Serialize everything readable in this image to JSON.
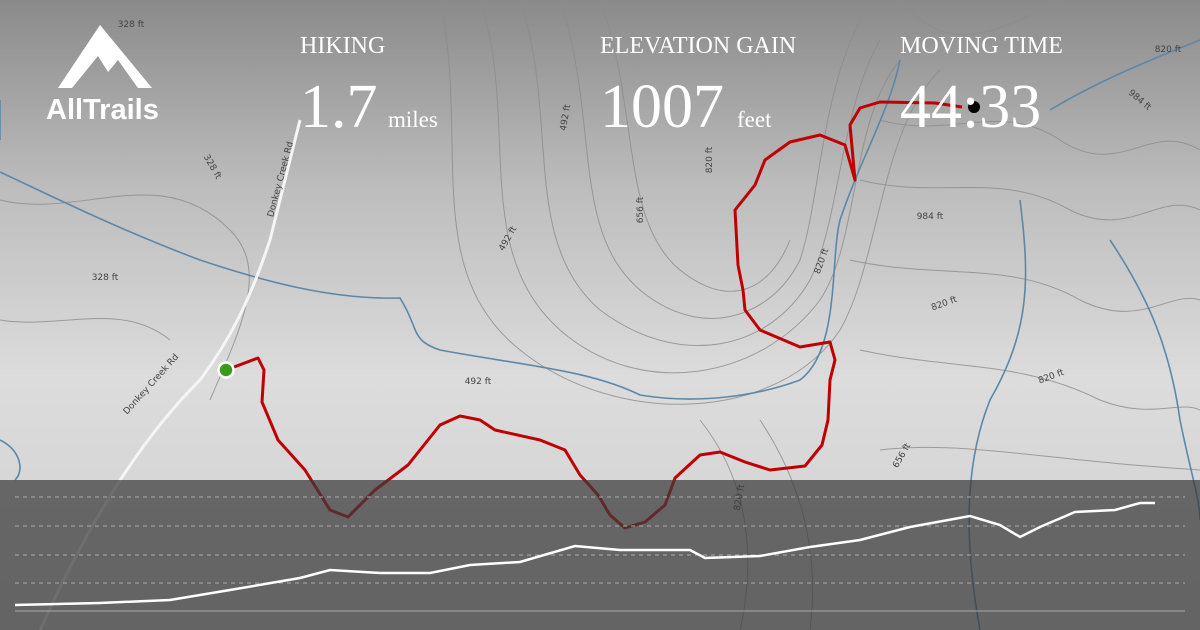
{
  "logo": {
    "name": "AllTrails"
  },
  "stats": [
    {
      "label": "HIKING",
      "value": "1.7",
      "unit": "miles"
    },
    {
      "label": "ELEVATION GAIN",
      "value": "1007",
      "unit": "feet"
    },
    {
      "label": "MOVING TIME",
      "value": "44:33"
    }
  ],
  "map_labels": [
    "328 ft",
    "328 ft",
    "328 ft",
    "492 ft",
    "492 ft",
    "656 ft",
    "820 ft",
    "820 ft",
    "984 ft",
    "820 ft",
    "820 ft",
    "984 ft",
    "820 ft",
    "656 ft",
    "492 ft",
    "820 ft",
    "Donkey Creek Rd",
    "Donkey Creek Rd"
  ]
}
